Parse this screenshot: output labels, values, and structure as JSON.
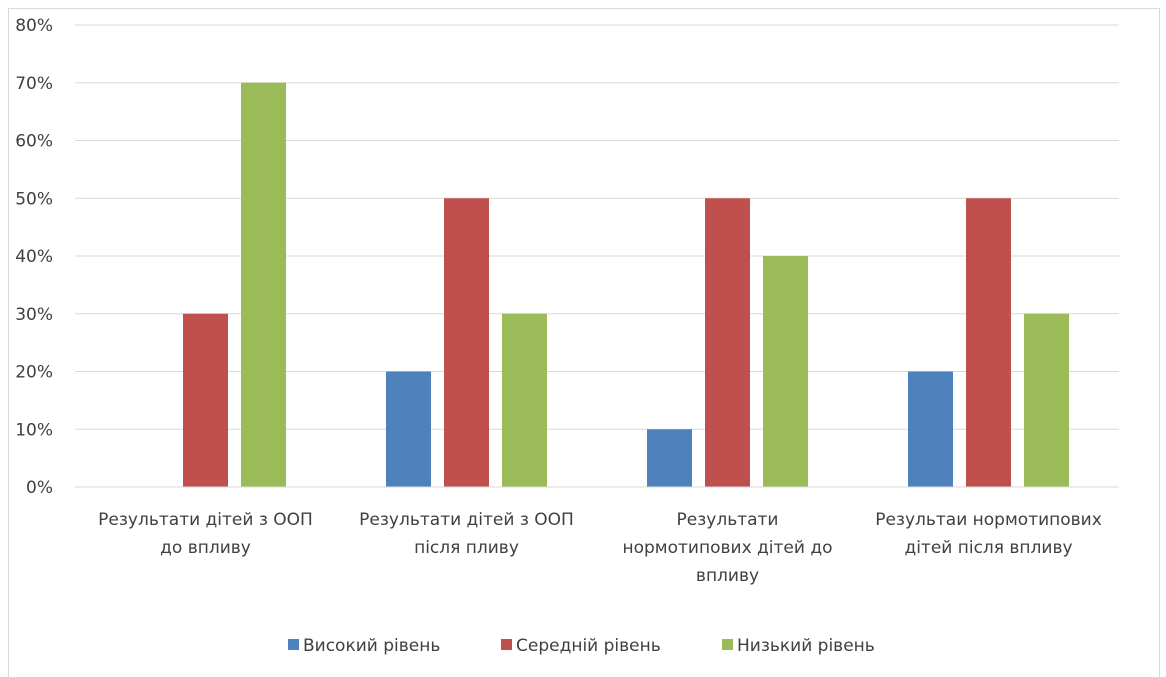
{
  "chart_data": {
    "type": "bar",
    "categories": [
      [
        "Результати дітей з ООП",
        "до впливу"
      ],
      [
        "Результати дітей з ООП",
        "після пливу"
      ],
      [
        "Результати",
        "нормотипових дітей до",
        "впливу"
      ],
      [
        "Результаи нормотипових",
        "дітей після впливу"
      ]
    ],
    "series": [
      {
        "name": "Високий рівень",
        "values": [
          0,
          20,
          10,
          20
        ],
        "color": "#4f81bd"
      },
      {
        "name": "Середній рівень",
        "values": [
          30,
          50,
          50,
          50
        ],
        "color": "#c0504d"
      },
      {
        "name": "Низький рівень",
        "values": [
          70,
          30,
          40,
          30
        ],
        "color": "#9bbb59"
      }
    ],
    "y_ticks": [
      "0%",
      "10%",
      "20%",
      "30%",
      "40%",
      "50%",
      "60%",
      "70%",
      "80%"
    ],
    "ylim": [
      0,
      80
    ],
    "grid": true,
    "legend_position": "bottom"
  }
}
